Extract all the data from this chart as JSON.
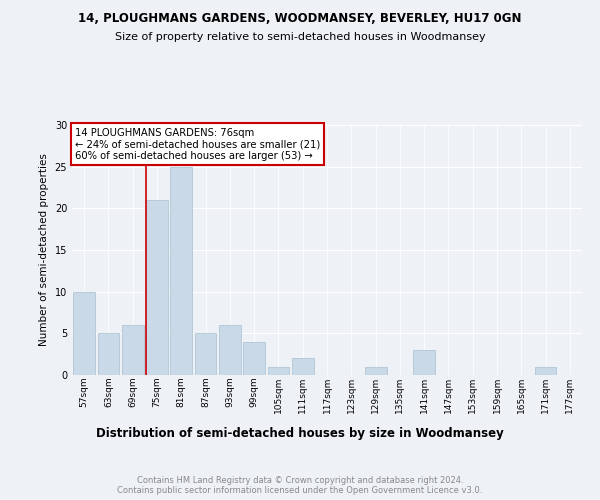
{
  "title1": "14, PLOUGHMANS GARDENS, WOODMANSEY, BEVERLEY, HU17 0GN",
  "title2": "Size of property relative to semi-detached houses in Woodmansey",
  "xlabel": "Distribution of semi-detached houses by size in Woodmansey",
  "ylabel": "Number of semi-detached properties",
  "categories": [
    "57sqm",
    "63sqm",
    "69sqm",
    "75sqm",
    "81sqm",
    "87sqm",
    "93sqm",
    "99sqm",
    "105sqm",
    "111sqm",
    "117sqm",
    "123sqm",
    "129sqm",
    "135sqm",
    "141sqm",
    "147sqm",
    "153sqm",
    "159sqm",
    "165sqm",
    "171sqm",
    "177sqm"
  ],
  "values": [
    10,
    5,
    6,
    21,
    25,
    5,
    6,
    4,
    1,
    2,
    0,
    0,
    1,
    0,
    3,
    0,
    0,
    0,
    0,
    1,
    0
  ],
  "bar_color": "#c9d9e8",
  "bar_edge_color": "#a8bfd0",
  "vline_index": 3,
  "annotation_text": "14 PLOUGHMANS GARDENS: 76sqm\n← 24% of semi-detached houses are smaller (21)\n60% of semi-detached houses are larger (53) →",
  "annotation_box_color": "#ffffff",
  "annotation_box_edge": "#cc0000",
  "vline_color": "#cc0000",
  "ylim": [
    0,
    30
  ],
  "yticks": [
    0,
    5,
    10,
    15,
    20,
    25,
    30
  ],
  "footer": "Contains HM Land Registry data © Crown copyright and database right 2024.\nContains public sector information licensed under the Open Government Licence v3.0.",
  "bg_color": "#eef2f7",
  "title1_fontsize": 8.5,
  "title2_fontsize": 8.0,
  "xlabel_fontsize": 8.5,
  "ylabel_fontsize": 7.5,
  "tick_fontsize": 6.5,
  "footer_fontsize": 6.0,
  "ann_fontsize": 7.2
}
